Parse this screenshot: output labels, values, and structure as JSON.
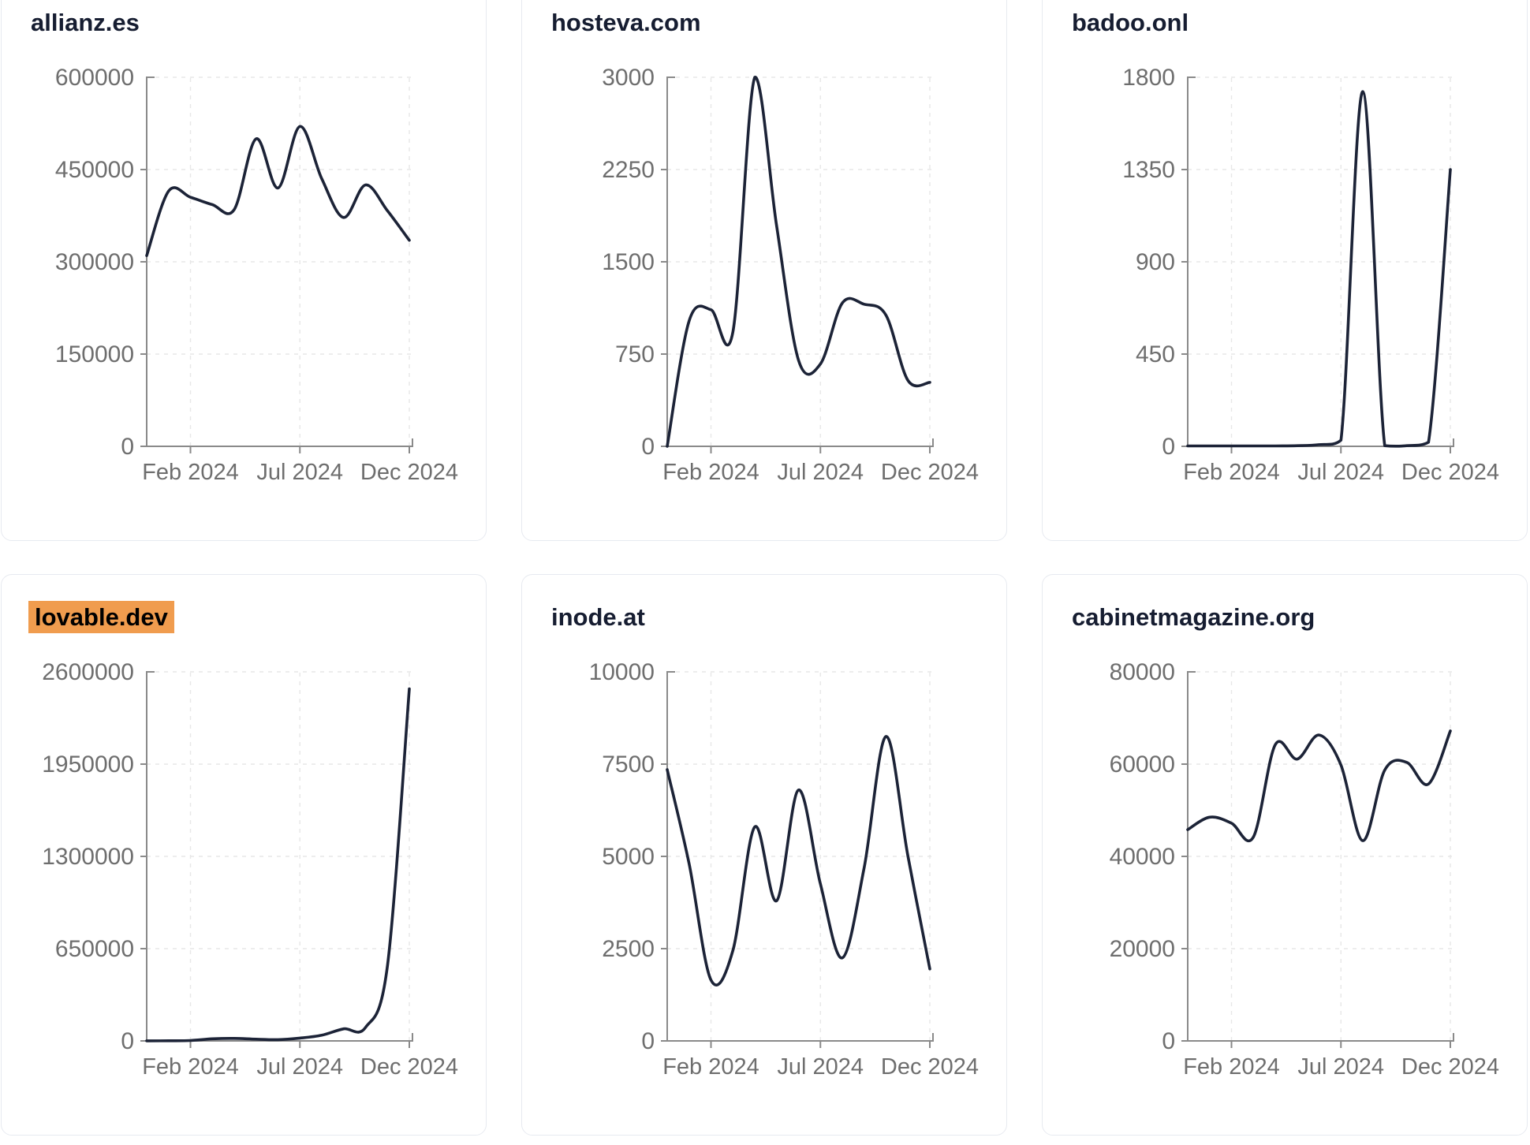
{
  "style": {
    "page_background": "#ffffff",
    "card_border_color": "#e7eaf0",
    "title_color": "#161d31",
    "highlight_color": "#f09c4e",
    "line_color": "#1c2337",
    "axis_color": "#8a8a8a",
    "grid_color": "#e7e7e7",
    "tick_label_color": "#6e6e6e"
  },
  "chart_data": [
    {
      "type": "line",
      "title": "allianz.es",
      "highlighted": false,
      "x": [
        "Dec 2023",
        "Jan 2024",
        "Feb 2024",
        "Mar 2024",
        "Apr 2024",
        "May 2024",
        "Jun 2024",
        "Jul 2024",
        "Aug 2024",
        "Sep 2024",
        "Oct 2024",
        "Nov 2024",
        "Dec 2024"
      ],
      "values": [
        310000,
        415000,
        405000,
        393000,
        385000,
        500000,
        420000,
        520000,
        435000,
        372000,
        425000,
        383000,
        335000
      ],
      "ylim": [
        0,
        600000
      ],
      "y_ticks": [
        0,
        150000,
        300000,
        450000,
        600000
      ],
      "x_tick_labels": [
        "Feb 2024",
        "Jul 2024",
        "Dec 2024"
      ],
      "x_tick_positions": [
        2,
        7,
        12
      ],
      "grid": true,
      "legend": "none"
    },
    {
      "type": "line",
      "title": "hosteva.com",
      "highlighted": false,
      "x": [
        "Dec 2023",
        "Jan 2024",
        "Feb 2024",
        "Mar 2024",
        "Apr 2024",
        "May 2024",
        "Jun 2024",
        "Jul 2024",
        "Aug 2024",
        "Sep 2024",
        "Oct 2024",
        "Nov 2024",
        "Dec 2024"
      ],
      "values": [
        0,
        1020,
        1110,
        930,
        3000,
        1790,
        700,
        670,
        1165,
        1155,
        1065,
        535,
        520
      ],
      "ylim": [
        0,
        3000
      ],
      "y_ticks": [
        0,
        750,
        1500,
        2250,
        3000
      ],
      "x_tick_labels": [
        "Feb 2024",
        "Jul 2024",
        "Dec 2024"
      ],
      "x_tick_positions": [
        2,
        7,
        12
      ],
      "grid": true,
      "legend": "none"
    },
    {
      "type": "line",
      "title": "badoo.onl",
      "highlighted": false,
      "x": [
        "Dec 2023",
        "Jan 2024",
        "Feb 2024",
        "Mar 2024",
        "Apr 2024",
        "May 2024",
        "Jun 2024",
        "Jul 2024",
        "Aug 2024",
        "Sep 2024",
        "Oct 2024",
        "Nov 2024",
        "Dec 2024"
      ],
      "values": [
        2,
        2,
        2,
        2,
        2,
        3,
        8,
        30,
        1730,
        3,
        3,
        20,
        1350
      ],
      "ylim": [
        0,
        1800
      ],
      "y_ticks": [
        0,
        450,
        900,
        1350,
        1800
      ],
      "x_tick_labels": [
        "Feb 2024",
        "Jul 2024",
        "Dec 2024"
      ],
      "x_tick_positions": [
        2,
        7,
        12
      ],
      "grid": true,
      "legend": "none"
    },
    {
      "type": "line",
      "title": "lovable.dev",
      "highlighted": true,
      "x": [
        "Dec 2023",
        "Jan 2024",
        "Feb 2024",
        "Mar 2024",
        "Apr 2024",
        "May 2024",
        "Jun 2024",
        "Jul 2024",
        "Aug 2024",
        "Sep 2024",
        "Oct 2024",
        "Nov 2024",
        "Dec 2024"
      ],
      "values": [
        500,
        1000,
        3000,
        15000,
        18000,
        12000,
        9000,
        20000,
        40000,
        85000,
        95000,
        530000,
        2480000
      ],
      "ylim": [
        0,
        2600000
      ],
      "y_ticks": [
        0,
        650000,
        1300000,
        1950000,
        2600000
      ],
      "x_tick_labels": [
        "Feb 2024",
        "Jul 2024",
        "Dec 2024"
      ],
      "x_tick_positions": [
        2,
        7,
        12
      ],
      "grid": true,
      "legend": "none"
    },
    {
      "type": "line",
      "title": "inode.at",
      "highlighted": false,
      "x": [
        "Dec 2023",
        "Jan 2024",
        "Feb 2024",
        "Mar 2024",
        "Apr 2024",
        "May 2024",
        "Jun 2024",
        "Jul 2024",
        "Aug 2024",
        "Sep 2024",
        "Oct 2024",
        "Nov 2024",
        "Dec 2024"
      ],
      "values": [
        7350,
        4800,
        1650,
        2450,
        5800,
        3800,
        6800,
        4250,
        2250,
        4700,
        8250,
        5000,
        1950
      ],
      "ylim": [
        0,
        10000
      ],
      "y_ticks": [
        0,
        2500,
        5000,
        7500,
        10000
      ],
      "x_tick_labels": [
        "Feb 2024",
        "Jul 2024",
        "Dec 2024"
      ],
      "x_tick_positions": [
        2,
        7,
        12
      ],
      "grid": true,
      "legend": "none"
    },
    {
      "type": "line",
      "title": "cabinetmagazine.org",
      "highlighted": false,
      "x": [
        "Dec 2023",
        "Jan 2024",
        "Feb 2024",
        "Mar 2024",
        "Apr 2024",
        "May 2024",
        "Jun 2024",
        "Jul 2024",
        "Aug 2024",
        "Sep 2024",
        "Oct 2024",
        "Nov 2024",
        "Dec 2024"
      ],
      "values": [
        45800,
        48500,
        47200,
        44200,
        64200,
        61100,
        66300,
        59800,
        43400,
        58700,
        60400,
        55700,
        67200
      ],
      "ylim": [
        0,
        80000
      ],
      "y_ticks": [
        0,
        20000,
        40000,
        60000,
        80000
      ],
      "x_tick_labels": [
        "Feb 2024",
        "Jul 2024",
        "Dec 2024"
      ],
      "x_tick_positions": [
        2,
        7,
        12
      ],
      "grid": true,
      "legend": "none"
    }
  ]
}
